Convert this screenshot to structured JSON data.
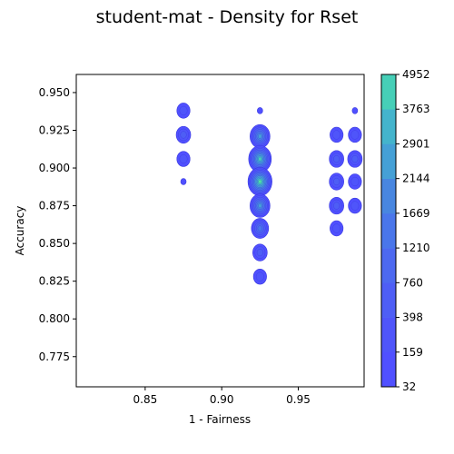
{
  "chart_data": {
    "type": "contour",
    "title": "student-mat - Density for Rset",
    "xlabel": "1 - Fairness",
    "ylabel": "Accuracy",
    "xlim": [
      0.805,
      0.993
    ],
    "ylim": [
      0.755,
      0.962
    ],
    "xticks": [
      "0.85",
      "0.90",
      "0.95"
    ],
    "xtick_values": [
      0.85,
      0.9,
      0.95
    ],
    "yticks": [
      "0.775",
      "0.800",
      "0.825",
      "0.850",
      "0.875",
      "0.900",
      "0.925",
      "0.950"
    ],
    "ytick_values": [
      0.775,
      0.8,
      0.825,
      0.85,
      0.875,
      0.9,
      0.925,
      0.95
    ],
    "grid": false,
    "colorbar": {
      "levels": [
        "32",
        "159",
        "398",
        "760",
        "1210",
        "1669",
        "2144",
        "2901",
        "3763",
        "4952"
      ],
      "colors": [
        "#5050ff",
        "#4f55fa",
        "#4e5ef5",
        "#4d69f0",
        "#4a76ea",
        "#4886e0",
        "#45a0d6",
        "#44b4cc",
        "#46cfb7",
        "#4de6a2"
      ]
    },
    "blobs": [
      {
        "x": 0.875,
        "y": 0.938,
        "level": 1
      },
      {
        "x": 0.875,
        "y": 0.922,
        "level": 2
      },
      {
        "x": 0.875,
        "y": 0.906,
        "level": 1
      },
      {
        "x": 0.875,
        "y": 0.891,
        "level": 0
      },
      {
        "x": 0.925,
        "y": 0.938,
        "level": 0
      },
      {
        "x": 0.925,
        "y": 0.921,
        "level": 6
      },
      {
        "x": 0.925,
        "y": 0.906,
        "level": 8
      },
      {
        "x": 0.925,
        "y": 0.891,
        "level": 9
      },
      {
        "x": 0.925,
        "y": 0.875,
        "level": 6
      },
      {
        "x": 0.925,
        "y": 0.86,
        "level": 4
      },
      {
        "x": 0.925,
        "y": 0.844,
        "level": 2
      },
      {
        "x": 0.925,
        "y": 0.828,
        "level": 1
      },
      {
        "x": 0.975,
        "y": 0.922,
        "level": 1
      },
      {
        "x": 0.975,
        "y": 0.906,
        "level": 2
      },
      {
        "x": 0.975,
        "y": 0.891,
        "level": 2
      },
      {
        "x": 0.975,
        "y": 0.875,
        "level": 2
      },
      {
        "x": 0.975,
        "y": 0.86,
        "level": 1
      },
      {
        "x": 0.987,
        "y": 0.938,
        "level": 0
      },
      {
        "x": 0.987,
        "y": 0.922,
        "level": 1
      },
      {
        "x": 0.987,
        "y": 0.906,
        "level": 2
      },
      {
        "x": 0.987,
        "y": 0.891,
        "level": 1
      },
      {
        "x": 0.987,
        "y": 0.875,
        "level": 1
      }
    ]
  }
}
